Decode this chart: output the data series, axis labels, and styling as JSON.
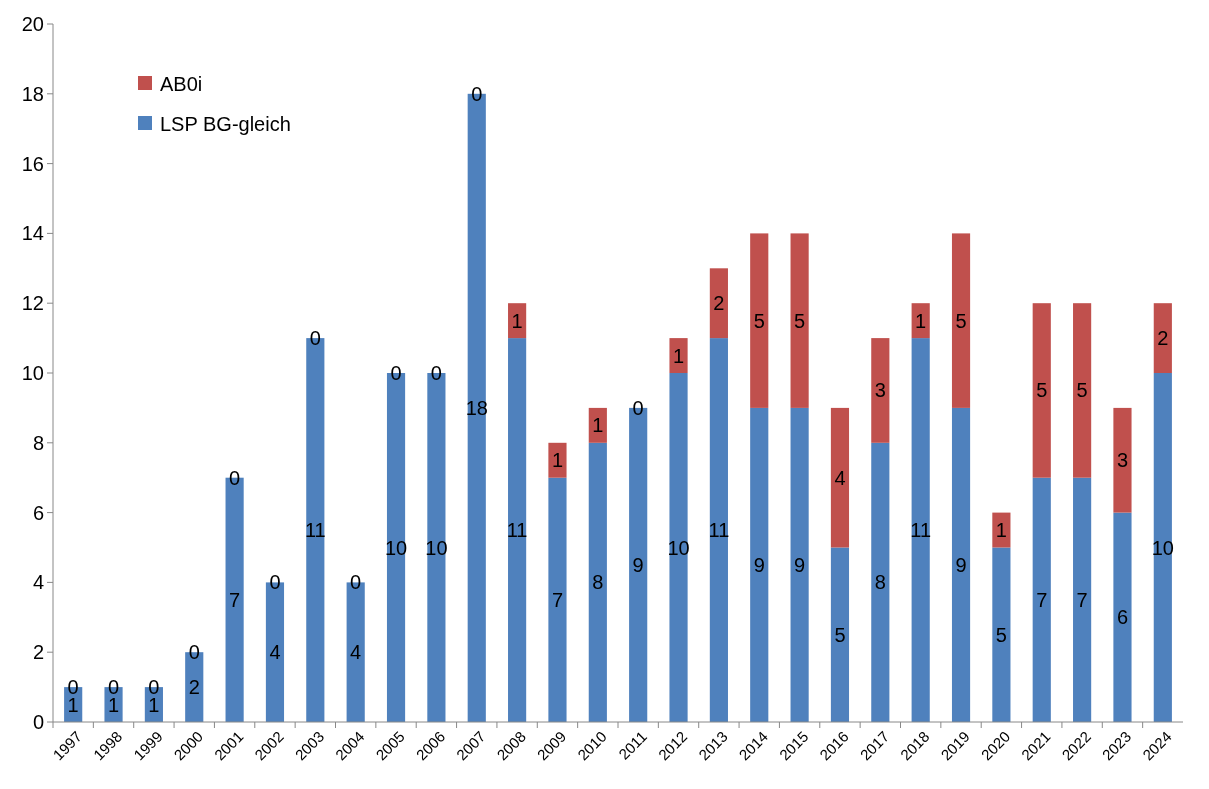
{
  "chart_data": {
    "type": "bar",
    "stacked": true,
    "data_labels": true,
    "legend": "top left",
    "grid": false,
    "categories": [
      "1997",
      "1998",
      "1999",
      "2000",
      "2001",
      "2002",
      "2003",
      "2004",
      "2005",
      "2006",
      "2007",
      "2008",
      "2009",
      "2010",
      "2011",
      "2012",
      "2013",
      "2014",
      "2015",
      "2016",
      "2017",
      "2018",
      "2019",
      "2020",
      "2021",
      "2022",
      "2023",
      "2024"
    ],
    "series": [
      {
        "name": "LSP BG-gleich",
        "color": "#4f81bd",
        "values": [
          1,
          1,
          1,
          2,
          7,
          4,
          11,
          4,
          10,
          10,
          18,
          11,
          7,
          8,
          9,
          10,
          11,
          9,
          9,
          5,
          8,
          11,
          9,
          5,
          7,
          7,
          6,
          10
        ]
      },
      {
        "name": "AB0i",
        "color": "#c0504d",
        "values": [
          0,
          0,
          0,
          0,
          0,
          0,
          0,
          0,
          0,
          0,
          0,
          1,
          1,
          1,
          0,
          1,
          2,
          5,
          5,
          4,
          3,
          1,
          5,
          1,
          5,
          5,
          3,
          2
        ]
      }
    ],
    "ylim": [
      0,
      20
    ],
    "yticks": [
      0,
      2,
      4,
      6,
      8,
      10,
      12,
      14,
      16,
      18,
      20
    ]
  }
}
